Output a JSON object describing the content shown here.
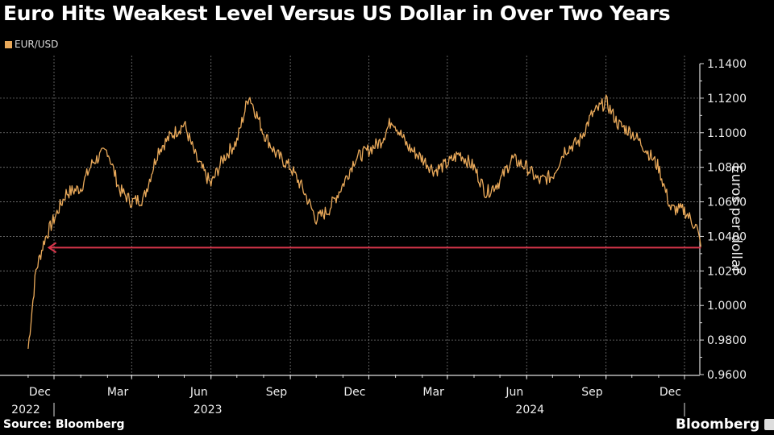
{
  "header": {
    "title": "Euro Hits Weakest Level Versus US Dollar in Over Two Years",
    "legend": [
      {
        "label": "EUR/USD",
        "color": "#e9a95a"
      }
    ]
  },
  "footer": {
    "source": "Source: Bloomberg",
    "brand": "Bloomberg"
  },
  "colors": {
    "background": "#000000",
    "series": "#e9a95a",
    "arrow": "#d8354a",
    "grid": "#777777",
    "axis": "#dddddd"
  },
  "chart_data": {
    "type": "line",
    "title": "Euro Hits Weakest Level Versus US Dollar in Over Two Years",
    "xlabel": "",
    "ylabel": "Euros per dollar",
    "ylim": [
      0.96,
      1.14
    ],
    "yticks": [
      "1.1400",
      "1.1200",
      "1.1000",
      "1.0800",
      "1.0600",
      "1.0400",
      "1.0200",
      "1.0000",
      "0.9800",
      "0.9600"
    ],
    "xticks": [
      "Dec",
      "Mar",
      "Jun",
      "Sep",
      "Dec",
      "Mar",
      "Jun",
      "Sep",
      "Dec"
    ],
    "xyears": [
      {
        "label": "2022",
        "under": "Dec"
      },
      {
        "label": "2023",
        "under": "Jun"
      },
      {
        "label": "2024",
        "under": "Jun"
      }
    ],
    "grid": true,
    "legend_position": "top-left",
    "series": [
      {
        "name": "EUR/USD",
        "x": [
          "2022-11-01",
          "2022-11-10",
          "2022-11-20",
          "2022-12-01",
          "2022-12-15",
          "2023-01-01",
          "2023-01-15",
          "2023-02-01",
          "2023-02-15",
          "2023-03-01",
          "2023-03-15",
          "2023-04-01",
          "2023-04-15",
          "2023-05-01",
          "2023-05-15",
          "2023-06-01",
          "2023-06-15",
          "2023-07-01",
          "2023-07-15",
          "2023-08-01",
          "2023-08-15",
          "2023-09-01",
          "2023-09-15",
          "2023-10-01",
          "2023-10-15",
          "2023-11-01",
          "2023-11-15",
          "2023-12-01",
          "2023-12-15",
          "2023-12-28",
          "2024-01-15",
          "2024-02-01",
          "2024-02-15",
          "2024-03-01",
          "2024-03-15",
          "2024-04-01",
          "2024-04-15",
          "2024-05-01",
          "2024-05-15",
          "2024-06-01",
          "2024-06-15",
          "2024-07-01",
          "2024-07-15",
          "2024-08-01",
          "2024-08-15",
          "2024-09-01",
          "2024-09-15",
          "2024-10-01",
          "2024-10-15",
          "2024-11-01",
          "2024-11-15",
          "2024-12-01",
          "2024-12-15",
          "2024-12-20"
        ],
        "values": [
          0.975,
          1.02,
          1.038,
          1.05,
          1.065,
          1.068,
          1.083,
          1.09,
          1.067,
          1.06,
          1.062,
          1.09,
          1.098,
          1.105,
          1.085,
          1.07,
          1.085,
          1.095,
          1.122,
          1.1,
          1.088,
          1.08,
          1.068,
          1.05,
          1.055,
          1.07,
          1.085,
          1.09,
          1.095,
          1.108,
          1.092,
          1.085,
          1.078,
          1.082,
          1.088,
          1.08,
          1.065,
          1.072,
          1.085,
          1.08,
          1.072,
          1.075,
          1.09,
          1.095,
          1.11,
          1.118,
          1.105,
          1.1,
          1.092,
          1.08,
          1.056,
          1.055,
          1.045,
          1.034
        ]
      }
    ],
    "annotations": [
      {
        "type": "arrow",
        "y": 1.0335,
        "direction": "left",
        "from": "2024-12-20",
        "to": "2022-11-25",
        "color": "#d8354a"
      }
    ]
  }
}
